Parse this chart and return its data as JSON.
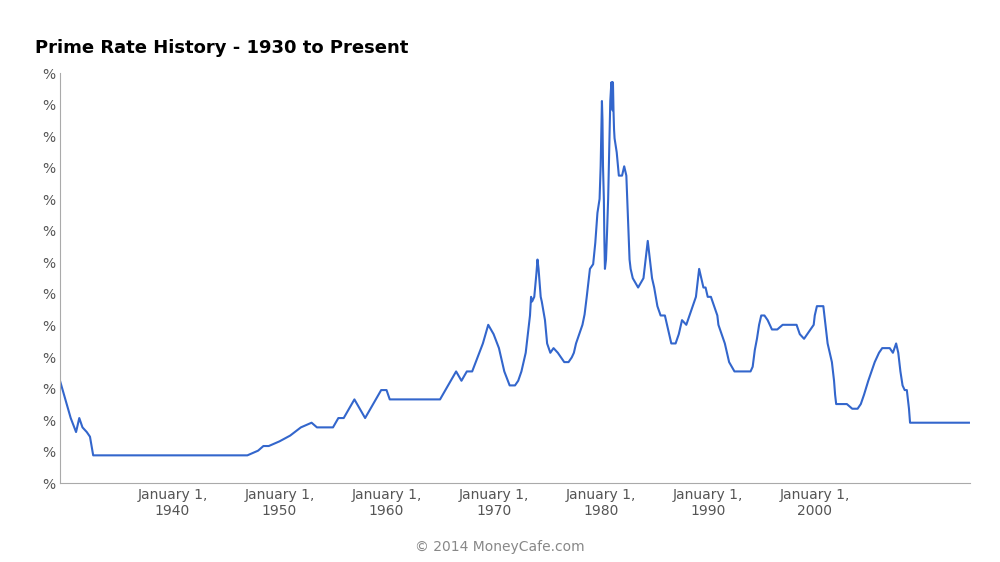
{
  "title": "Prime Rate History - 1930 to Present",
  "line_color": "#3366cc",
  "background_color": "#ffffff",
  "copyright_text": "© 2014 MoneyCafe.com",
  "x_tick_years": [
    1940,
    1950,
    1960,
    1970,
    1980,
    1990,
    2000
  ],
  "ylim": [
    0,
    22
  ],
  "xlim": [
    1929.5,
    2014.5
  ],
  "num_yticks": 14,
  "data": [
    [
      1929.5,
      5.5
    ],
    [
      1930.0,
      4.5
    ],
    [
      1930.5,
      3.5
    ],
    [
      1931.0,
      2.75
    ],
    [
      1931.3,
      3.5
    ],
    [
      1931.6,
      3.0
    ],
    [
      1932.0,
      2.75
    ],
    [
      1932.3,
      2.5
    ],
    [
      1932.6,
      1.5
    ],
    [
      1933.0,
      1.5
    ],
    [
      1934.0,
      1.5
    ],
    [
      1935.0,
      1.5
    ],
    [
      1936.0,
      1.5
    ],
    [
      1937.0,
      1.5
    ],
    [
      1938.0,
      1.5
    ],
    [
      1939.0,
      1.5
    ],
    [
      1940.0,
      1.5
    ],
    [
      1941.0,
      1.5
    ],
    [
      1942.0,
      1.5
    ],
    [
      1943.0,
      1.5
    ],
    [
      1944.0,
      1.5
    ],
    [
      1945.0,
      1.5
    ],
    [
      1946.0,
      1.5
    ],
    [
      1947.0,
      1.5
    ],
    [
      1948.0,
      1.75
    ],
    [
      1948.5,
      2.0
    ],
    [
      1949.0,
      2.0
    ],
    [
      1950.0,
      2.25
    ],
    [
      1951.0,
      2.56
    ],
    [
      1952.0,
      3.0
    ],
    [
      1953.0,
      3.25
    ],
    [
      1953.5,
      3.0
    ],
    [
      1954.0,
      3.0
    ],
    [
      1955.0,
      3.0
    ],
    [
      1955.5,
      3.5
    ],
    [
      1956.0,
      3.5
    ],
    [
      1957.0,
      4.5
    ],
    [
      1957.5,
      4.0
    ],
    [
      1958.0,
      3.5
    ],
    [
      1958.5,
      4.0
    ],
    [
      1959.0,
      4.5
    ],
    [
      1959.5,
      5.0
    ],
    [
      1960.0,
      5.0
    ],
    [
      1960.3,
      4.5
    ],
    [
      1961.0,
      4.5
    ],
    [
      1962.0,
      4.5
    ],
    [
      1963.0,
      4.5
    ],
    [
      1964.0,
      4.5
    ],
    [
      1965.0,
      4.5
    ],
    [
      1965.5,
      5.0
    ],
    [
      1966.0,
      5.5
    ],
    [
      1966.5,
      6.0
    ],
    [
      1967.0,
      5.5
    ],
    [
      1967.5,
      6.0
    ],
    [
      1968.0,
      6.0
    ],
    [
      1968.5,
      6.75
    ],
    [
      1969.0,
      7.5
    ],
    [
      1969.5,
      8.5
    ],
    [
      1970.0,
      8.0
    ],
    [
      1970.5,
      7.25
    ],
    [
      1971.0,
      6.0
    ],
    [
      1971.5,
      5.25
    ],
    [
      1972.0,
      5.25
    ],
    [
      1972.3,
      5.5
    ],
    [
      1972.6,
      6.0
    ],
    [
      1973.0,
      7.0
    ],
    [
      1973.2,
      8.0
    ],
    [
      1973.4,
      9.0
    ],
    [
      1973.5,
      10.0
    ],
    [
      1973.6,
      9.75
    ],
    [
      1973.8,
      10.0
    ],
    [
      1974.0,
      11.25
    ],
    [
      1974.1,
      12.0
    ],
    [
      1974.2,
      11.5
    ],
    [
      1974.3,
      10.75
    ],
    [
      1974.4,
      10.0
    ],
    [
      1974.5,
      9.75
    ],
    [
      1974.8,
      8.75
    ],
    [
      1975.0,
      7.5
    ],
    [
      1975.3,
      7.0
    ],
    [
      1975.6,
      7.25
    ],
    [
      1976.0,
      7.0
    ],
    [
      1976.3,
      6.75
    ],
    [
      1976.6,
      6.5
    ],
    [
      1977.0,
      6.5
    ],
    [
      1977.3,
      6.75
    ],
    [
      1977.5,
      7.0
    ],
    [
      1977.7,
      7.5
    ],
    [
      1978.0,
      8.0
    ],
    [
      1978.3,
      8.5
    ],
    [
      1978.5,
      9.06
    ],
    [
      1978.7,
      10.0
    ],
    [
      1979.0,
      11.5
    ],
    [
      1979.3,
      11.75
    ],
    [
      1979.5,
      12.9
    ],
    [
      1979.7,
      14.5
    ],
    [
      1979.9,
      15.25
    ],
    [
      1980.0,
      17.0
    ],
    [
      1980.08,
      19.5
    ],
    [
      1980.12,
      20.5
    ],
    [
      1980.17,
      19.5
    ],
    [
      1980.22,
      17.0
    ],
    [
      1980.3,
      15.25
    ],
    [
      1980.35,
      13.0
    ],
    [
      1980.4,
      11.5
    ],
    [
      1980.5,
      12.0
    ],
    [
      1980.6,
      13.5
    ],
    [
      1980.7,
      15.25
    ],
    [
      1980.8,
      18.0
    ],
    [
      1980.9,
      20.5
    ],
    [
      1981.0,
      21.5
    ],
    [
      1981.05,
      20.5
    ],
    [
      1981.08,
      21.5
    ],
    [
      1981.12,
      20.0
    ],
    [
      1981.15,
      21.5
    ],
    [
      1981.2,
      20.0
    ],
    [
      1981.25,
      19.0
    ],
    [
      1981.3,
      18.5
    ],
    [
      1981.5,
      17.75
    ],
    [
      1981.7,
      16.5
    ],
    [
      1982.0,
      16.5
    ],
    [
      1982.2,
      17.0
    ],
    [
      1982.4,
      16.5
    ],
    [
      1982.5,
      15.0
    ],
    [
      1982.6,
      13.5
    ],
    [
      1982.7,
      12.0
    ],
    [
      1982.8,
      11.5
    ],
    [
      1983.0,
      11.0
    ],
    [
      1983.5,
      10.5
    ],
    [
      1984.0,
      11.0
    ],
    [
      1984.2,
      12.0
    ],
    [
      1984.4,
      13.0
    ],
    [
      1984.6,
      12.0
    ],
    [
      1984.8,
      11.0
    ],
    [
      1985.0,
      10.5
    ],
    [
      1985.3,
      9.5
    ],
    [
      1985.6,
      9.0
    ],
    [
      1986.0,
      9.0
    ],
    [
      1986.2,
      8.5
    ],
    [
      1986.4,
      8.0
    ],
    [
      1986.6,
      7.5
    ],
    [
      1987.0,
      7.5
    ],
    [
      1987.3,
      8.0
    ],
    [
      1987.6,
      8.75
    ],
    [
      1988.0,
      8.5
    ],
    [
      1988.3,
      9.0
    ],
    [
      1988.6,
      9.5
    ],
    [
      1988.9,
      10.0
    ],
    [
      1989.0,
      10.5
    ],
    [
      1989.2,
      11.5
    ],
    [
      1989.4,
      11.0
    ],
    [
      1989.6,
      10.5
    ],
    [
      1989.8,
      10.5
    ],
    [
      1990.0,
      10.0
    ],
    [
      1990.3,
      10.0
    ],
    [
      1990.6,
      9.5
    ],
    [
      1990.9,
      9.0
    ],
    [
      1991.0,
      8.5
    ],
    [
      1991.3,
      8.0
    ],
    [
      1991.6,
      7.5
    ],
    [
      1992.0,
      6.5
    ],
    [
      1992.5,
      6.0
    ],
    [
      1993.0,
      6.0
    ],
    [
      1993.5,
      6.0
    ],
    [
      1994.0,
      6.0
    ],
    [
      1994.2,
      6.25
    ],
    [
      1994.4,
      7.15
    ],
    [
      1994.6,
      7.75
    ],
    [
      1994.8,
      8.5
    ],
    [
      1995.0,
      9.0
    ],
    [
      1995.3,
      9.0
    ],
    [
      1995.6,
      8.75
    ],
    [
      1996.0,
      8.25
    ],
    [
      1996.5,
      8.25
    ],
    [
      1997.0,
      8.5
    ],
    [
      1997.5,
      8.5
    ],
    [
      1998.0,
      8.5
    ],
    [
      1998.3,
      8.5
    ],
    [
      1998.6,
      8.0
    ],
    [
      1999.0,
      7.75
    ],
    [
      1999.3,
      8.0
    ],
    [
      1999.6,
      8.25
    ],
    [
      1999.9,
      8.5
    ],
    [
      2000.0,
      9.0
    ],
    [
      2000.2,
      9.5
    ],
    [
      2000.5,
      9.5
    ],
    [
      2000.8,
      9.5
    ],
    [
      2001.0,
      8.5
    ],
    [
      2001.2,
      7.5
    ],
    [
      2001.4,
      7.0
    ],
    [
      2001.6,
      6.5
    ],
    [
      2001.8,
      5.5
    ],
    [
      2001.9,
      4.75
    ],
    [
      2002.0,
      4.25
    ],
    [
      2002.5,
      4.25
    ],
    [
      2003.0,
      4.25
    ],
    [
      2003.5,
      4.0
    ],
    [
      2004.0,
      4.0
    ],
    [
      2004.3,
      4.25
    ],
    [
      2004.6,
      4.75
    ],
    [
      2005.0,
      5.5
    ],
    [
      2005.3,
      6.0
    ],
    [
      2005.6,
      6.5
    ],
    [
      2006.0,
      7.0
    ],
    [
      2006.3,
      7.25
    ],
    [
      2006.6,
      7.25
    ],
    [
      2007.0,
      7.25
    ],
    [
      2007.3,
      7.0
    ],
    [
      2007.6,
      7.5
    ],
    [
      2007.7,
      7.25
    ],
    [
      2007.8,
      7.0
    ],
    [
      2007.9,
      6.5
    ],
    [
      2008.0,
      6.0
    ],
    [
      2008.2,
      5.25
    ],
    [
      2008.4,
      5.0
    ],
    [
      2008.6,
      5.0
    ],
    [
      2008.8,
      4.0
    ],
    [
      2008.9,
      3.25
    ],
    [
      2009.0,
      3.25
    ],
    [
      2010.0,
      3.25
    ],
    [
      2011.0,
      3.25
    ],
    [
      2012.0,
      3.25
    ],
    [
      2013.0,
      3.25
    ],
    [
      2014.0,
      3.25
    ],
    [
      2014.4,
      3.25
    ]
  ]
}
